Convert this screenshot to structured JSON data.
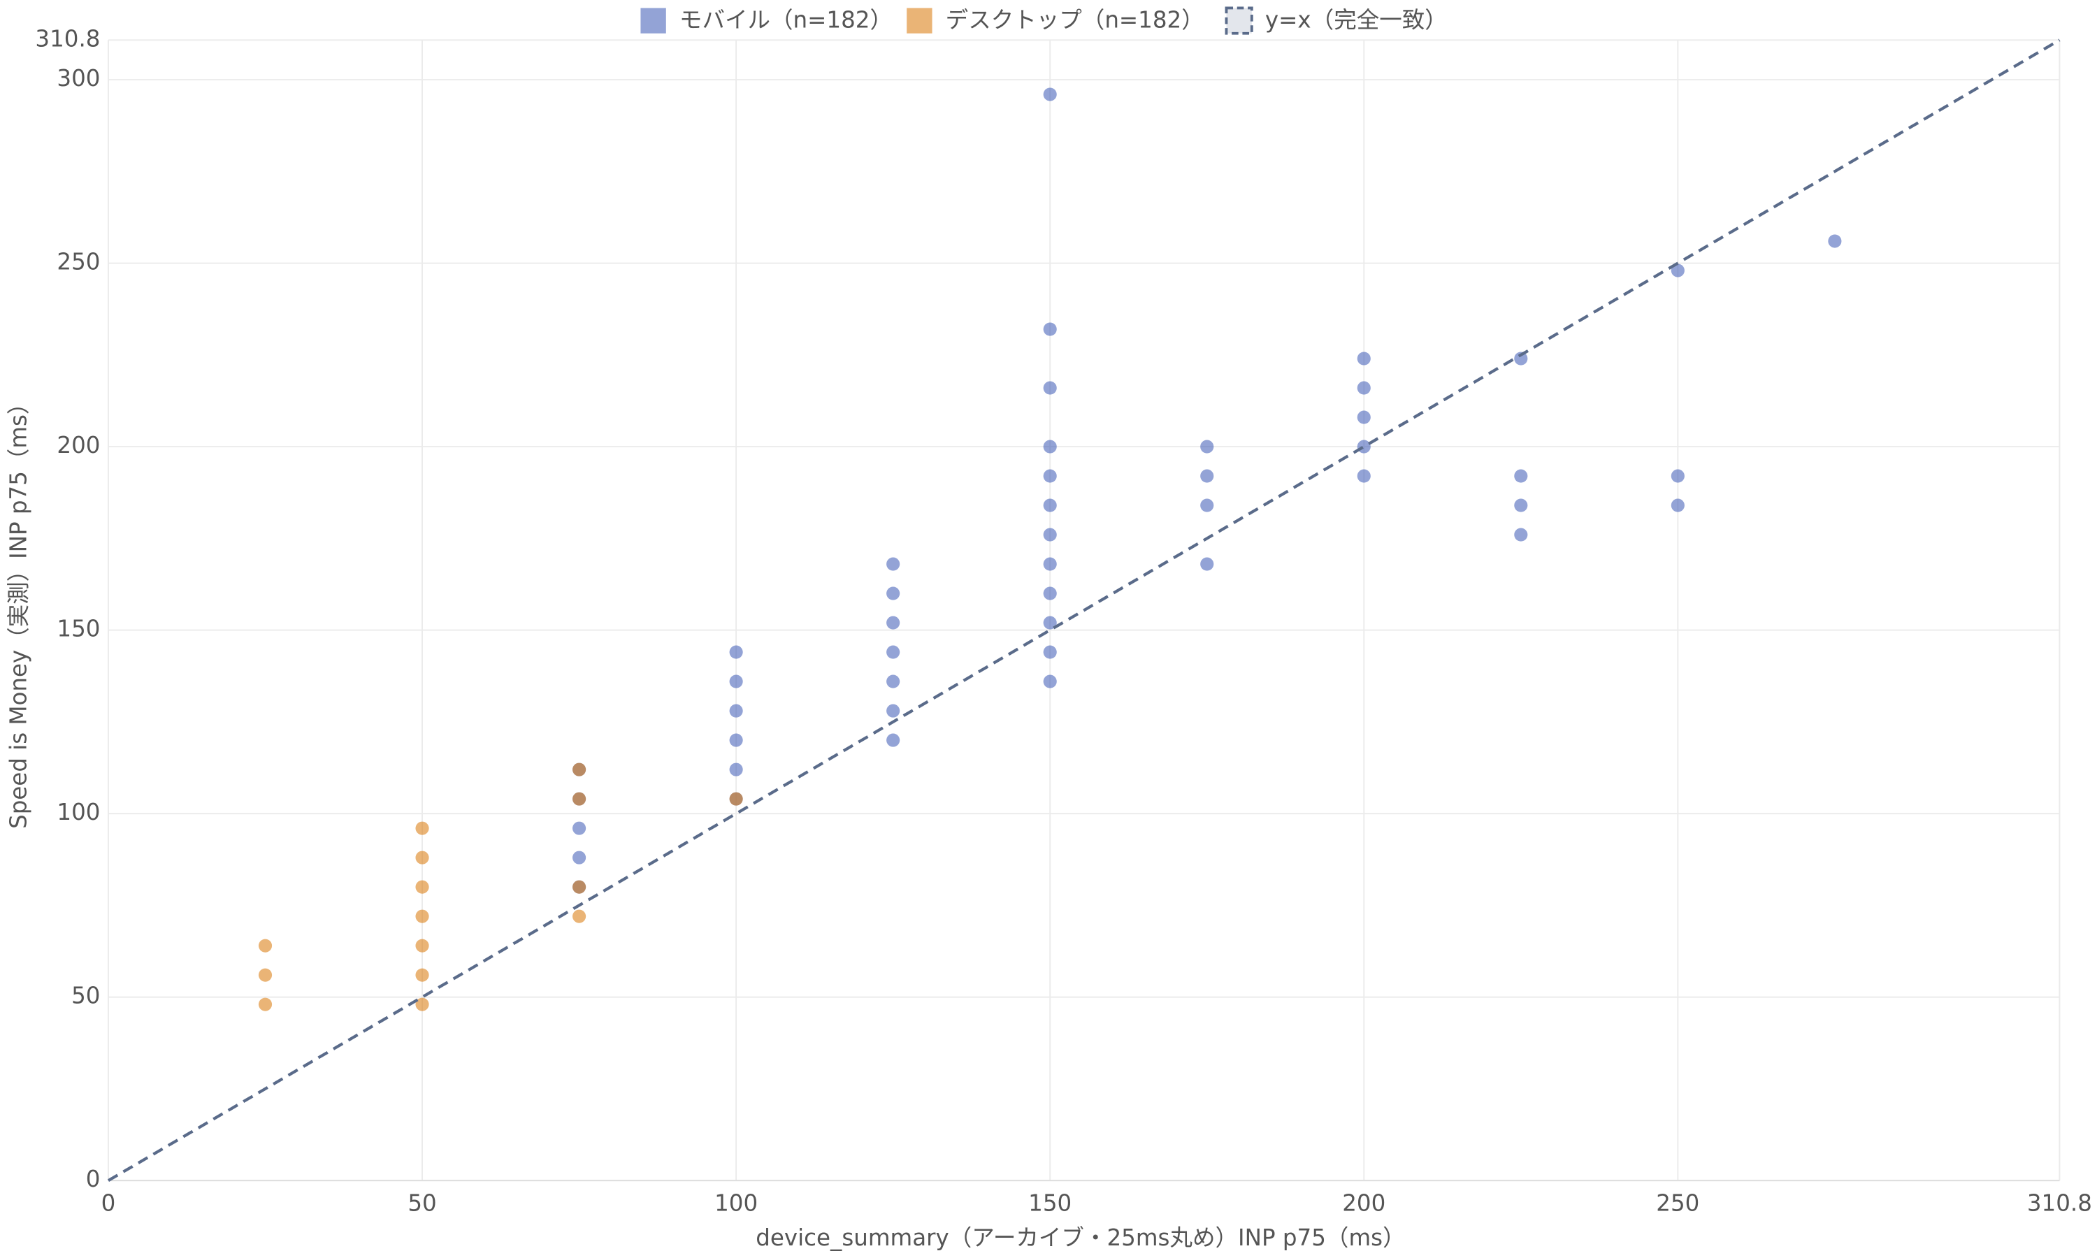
{
  "chart_data": {
    "type": "scatter",
    "x_label": "device_summary（アーカイブ・25ms丸め）INP p75（ms）",
    "y_label": "Speed is Money（実測）INP p75（ms）",
    "xlim": [
      0,
      310.8
    ],
    "ylim": [
      0,
      310.8
    ],
    "xticks": [
      0,
      50,
      100,
      150,
      200,
      250,
      310.8
    ],
    "yticks": [
      0,
      50,
      100,
      150,
      200,
      250,
      300,
      310.8
    ],
    "grid": true,
    "legend": "top",
    "series": [
      {
        "name": "モバイル（n=182）",
        "color": "#3a57b5",
        "x": [
          75,
          75,
          75,
          75,
          75,
          100,
          100,
          100,
          100,
          100,
          100,
          125,
          125,
          125,
          125,
          125,
          125,
          125,
          150,
          150,
          150,
          150,
          150,
          150,
          150,
          150,
          150,
          150,
          150,
          150,
          175,
          175,
          175,
          175,
          200,
          200,
          200,
          200,
          200,
          225,
          225,
          225,
          225,
          250,
          250,
          250,
          275
        ],
        "values": [
          112,
          104,
          96,
          88,
          80,
          144,
          136,
          128,
          120,
          112,
          104,
          168,
          160,
          152,
          144,
          136,
          128,
          120,
          296,
          232,
          216,
          200,
          192,
          184,
          176,
          168,
          160,
          152,
          144,
          136,
          200,
          192,
          184,
          168,
          224,
          216,
          208,
          200,
          192,
          224,
          192,
          184,
          176,
          248,
          192,
          184,
          256
        ]
      },
      {
        "name": "デスクトップ（n=182）",
        "color": "#d97706",
        "x": [
          25,
          25,
          25,
          50,
          50,
          50,
          50,
          50,
          50,
          50,
          75,
          75,
          75,
          75,
          100
        ],
        "values": [
          64,
          56,
          48,
          96,
          88,
          80,
          72,
          64,
          56,
          48,
          112,
          104,
          80,
          72,
          104
        ]
      },
      {
        "name": "y=x（完全一致）",
        "color": "#5a6b8a",
        "type": "line",
        "dash": true,
        "x": [
          0,
          310.8
        ],
        "values": [
          0,
          310.8
        ]
      }
    ]
  }
}
